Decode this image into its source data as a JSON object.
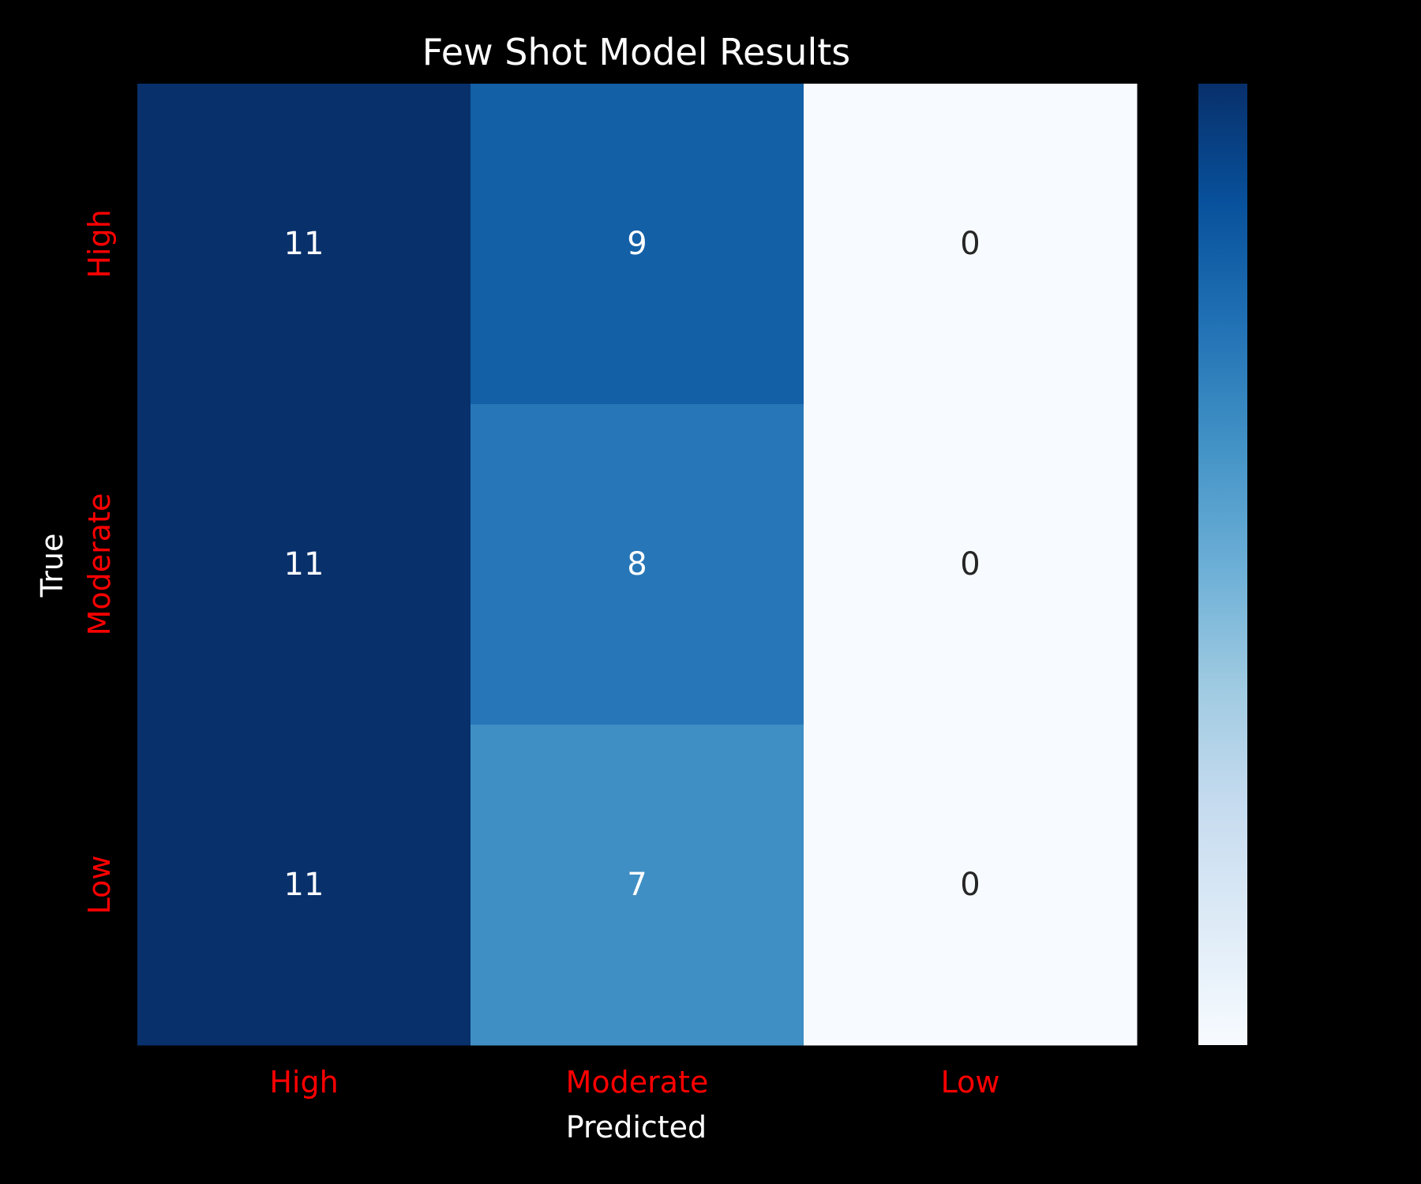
{
  "chart_data": {
    "type": "heatmap",
    "title": "Few Shot Model Results",
    "xlabel": "Predicted",
    "ylabel": "True",
    "x_categories": [
      "High",
      "Moderate",
      "Low"
    ],
    "y_categories": [
      "High",
      "Moderate",
      "Low"
    ],
    "values": [
      [
        11,
        9,
        0
      ],
      [
        11,
        8,
        0
      ],
      [
        11,
        7,
        0
      ]
    ],
    "colormap": "Blues",
    "vmin": 0,
    "vmax": 11,
    "colorbar": true,
    "tick_label_color": "#ff0000",
    "background_color": "#000000"
  }
}
